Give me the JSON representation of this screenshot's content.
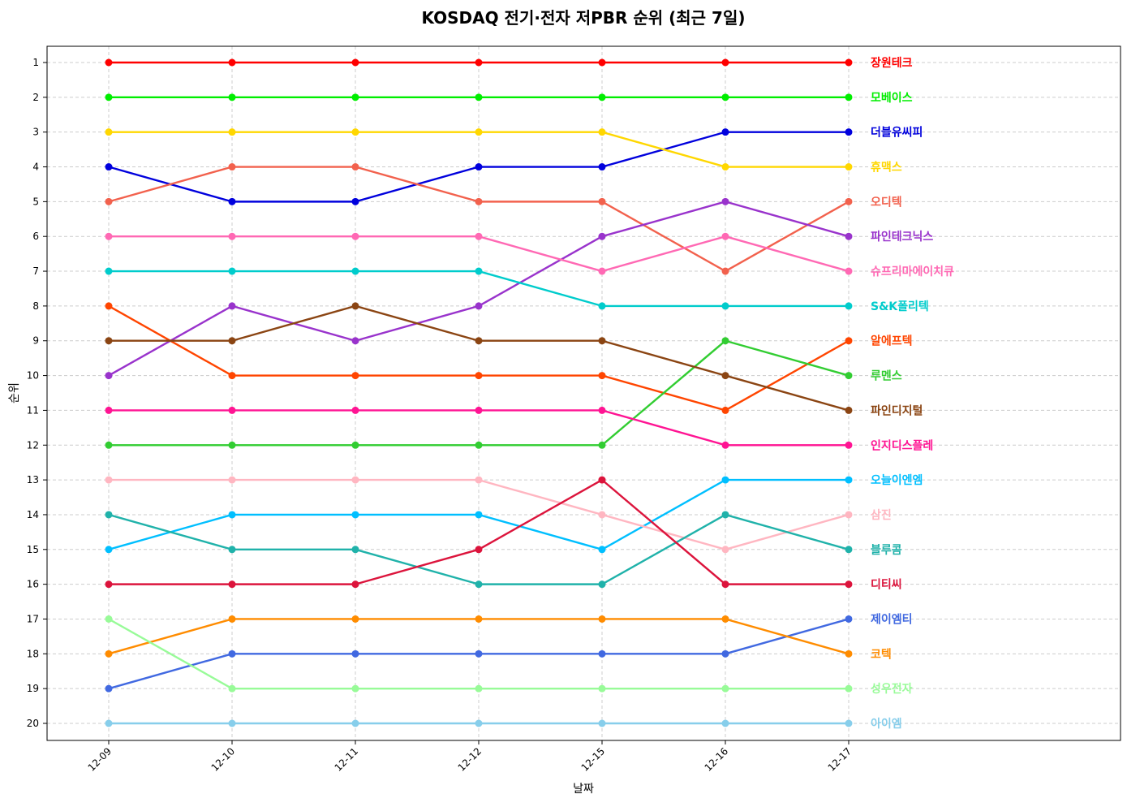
{
  "chart_data": {
    "type": "line",
    "title": "KOSDAQ 전기·전자 저PBR 순위 (최근 7일)",
    "xlabel": "날짜",
    "ylabel": "순위",
    "categories": [
      "12-09",
      "12-10",
      "12-11",
      "12-12",
      "12-15",
      "12-16",
      "12-17"
    ],
    "y_ticks": [
      1,
      2,
      3,
      4,
      5,
      6,
      7,
      8,
      9,
      10,
      11,
      12,
      13,
      14,
      15,
      16,
      17,
      18,
      19,
      20
    ],
    "ylim": [
      20.5,
      0.5
    ],
    "y_inverted": true,
    "grid": true,
    "legend": "inline labels at right end of each line",
    "series": [
      {
        "name": "장원테크",
        "color": "#ff0000",
        "values": [
          1,
          1,
          1,
          1,
          1,
          1,
          1
        ]
      },
      {
        "name": "모베이스",
        "color": "#00ee00",
        "values": [
          2,
          2,
          2,
          2,
          2,
          2,
          2
        ]
      },
      {
        "name": "더블유씨피",
        "color": "#0000dd",
        "values": [
          4,
          5,
          5,
          4,
          4,
          3,
          3
        ]
      },
      {
        "name": "휴맥스",
        "color": "#ffd700",
        "values": [
          3,
          3,
          3,
          3,
          3,
          4,
          4
        ]
      },
      {
        "name": "오디텍",
        "color": "#f2614d",
        "values": [
          5,
          4,
          4,
          5,
          5,
          7,
          5
        ]
      },
      {
        "name": "파인테크닉스",
        "color": "#9933cc",
        "values": [
          10,
          8,
          9,
          8,
          6,
          5,
          6
        ]
      },
      {
        "name": "슈프리마에이치큐",
        "color": "#ff69b4",
        "values": [
          6,
          6,
          6,
          6,
          7,
          6,
          7
        ]
      },
      {
        "name": "S&K폴리텍",
        "color": "#00cccc",
        "values": [
          7,
          7,
          7,
          7,
          8,
          8,
          8
        ]
      },
      {
        "name": "알에프텍",
        "color": "#ff4500",
        "values": [
          8,
          10,
          10,
          10,
          10,
          11,
          9
        ]
      },
      {
        "name": "루멘스",
        "color": "#32cd32",
        "values": [
          12,
          12,
          12,
          12,
          12,
          9,
          10
        ]
      },
      {
        "name": "파인디지털",
        "color": "#8b4513",
        "values": [
          9,
          9,
          8,
          9,
          9,
          10,
          11
        ]
      },
      {
        "name": "인지디스플레",
        "color": "#ff1493",
        "values": [
          11,
          11,
          11,
          11,
          11,
          12,
          12
        ]
      },
      {
        "name": "오늘이엔엠",
        "color": "#00bfff",
        "values": [
          15,
          14,
          14,
          14,
          15,
          13,
          13
        ]
      },
      {
        "name": "삼진",
        "color": "#ffb6c1",
        "values": [
          13,
          13,
          13,
          13,
          14,
          15,
          14
        ]
      },
      {
        "name": "블루콤",
        "color": "#20b2aa",
        "values": [
          14,
          15,
          15,
          16,
          16,
          14,
          15
        ]
      },
      {
        "name": "디티씨",
        "color": "#dc143c",
        "values": [
          16,
          16,
          16,
          15,
          13,
          16,
          16
        ]
      },
      {
        "name": "제이엠티",
        "color": "#4169e1",
        "values": [
          19,
          18,
          18,
          18,
          18,
          18,
          17
        ]
      },
      {
        "name": "코텍",
        "color": "#ff8c00",
        "values": [
          18,
          17,
          17,
          17,
          17,
          17,
          18
        ]
      },
      {
        "name": "성우전자",
        "color": "#98fb98",
        "values": [
          17,
          19,
          19,
          19,
          19,
          19,
          19
        ]
      },
      {
        "name": "아이엠",
        "color": "#87ceeb",
        "values": [
          20,
          20,
          20,
          20,
          20,
          20,
          20
        ]
      }
    ]
  }
}
